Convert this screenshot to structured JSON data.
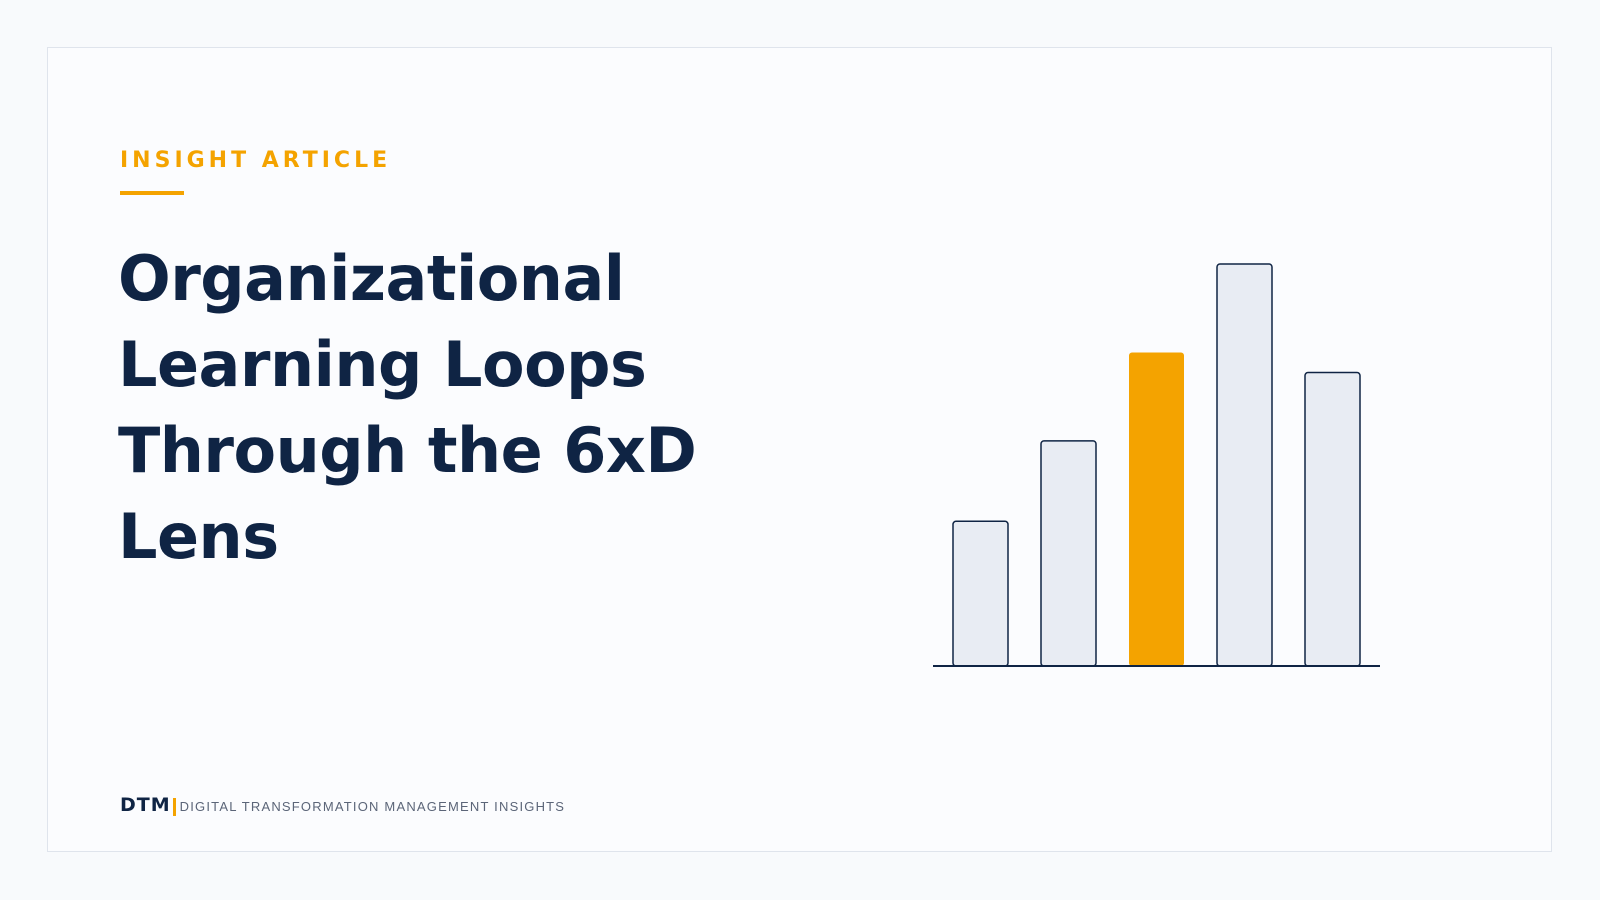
{
  "eyebrow": "INSIGHT ARTICLE",
  "title_lines": [
    "Organizational",
    "Learning Loops",
    "Through the 6xD",
    "Lens"
  ],
  "footer": {
    "brand": "DTM",
    "tagline": "DIGITAL TRANSFORMATION MANAGEMENT INSIGHTS"
  },
  "colors": {
    "accent": "#f4a300",
    "navy": "#0f2444",
    "bar_fill": "#e8ecf3",
    "background": "#fbfcfe"
  },
  "icons": {
    "illustration": "bar-chart-icon"
  },
  "chart_data": {
    "type": "bar",
    "categories": [
      "",
      "",
      "",
      "",
      ""
    ],
    "values": [
      36,
      56,
      78,
      100,
      73
    ],
    "highlight_index": 2,
    "ylim": [
      0,
      100
    ],
    "grid": false,
    "title": "",
    "xlabel": "",
    "ylabel": ""
  }
}
